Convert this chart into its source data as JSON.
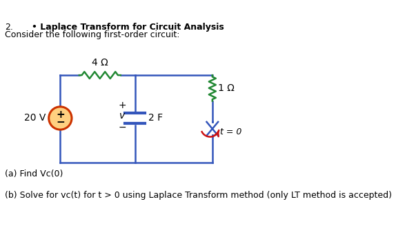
{
  "title_num": "2.",
  "title_bullet": "• Laplace Transform for Circuit Analysis",
  "subtitle": "Consider the following first-order circuit:",
  "label_4ohm": "4 Ω",
  "label_1ohm": "1 Ω",
  "label_20v": "20 V",
  "label_cap": "2 F",
  "label_v": "v",
  "label_plus": "+",
  "label_minus": "−",
  "label_t0": "t = 0",
  "label_a": "(a) Find Vc(0)",
  "label_b": "(b) Solve for vc(t) for t > 0 using Laplace Transform method (only LT method is accepted)",
  "circuit_color": "#3355BB",
  "resistor_color": "#228833",
  "source_fill": "#FFD080",
  "source_edge": "#CC3300",
  "switch_color": "#CC1111",
  "bg_color": "#ffffff",
  "lw": 1.8
}
